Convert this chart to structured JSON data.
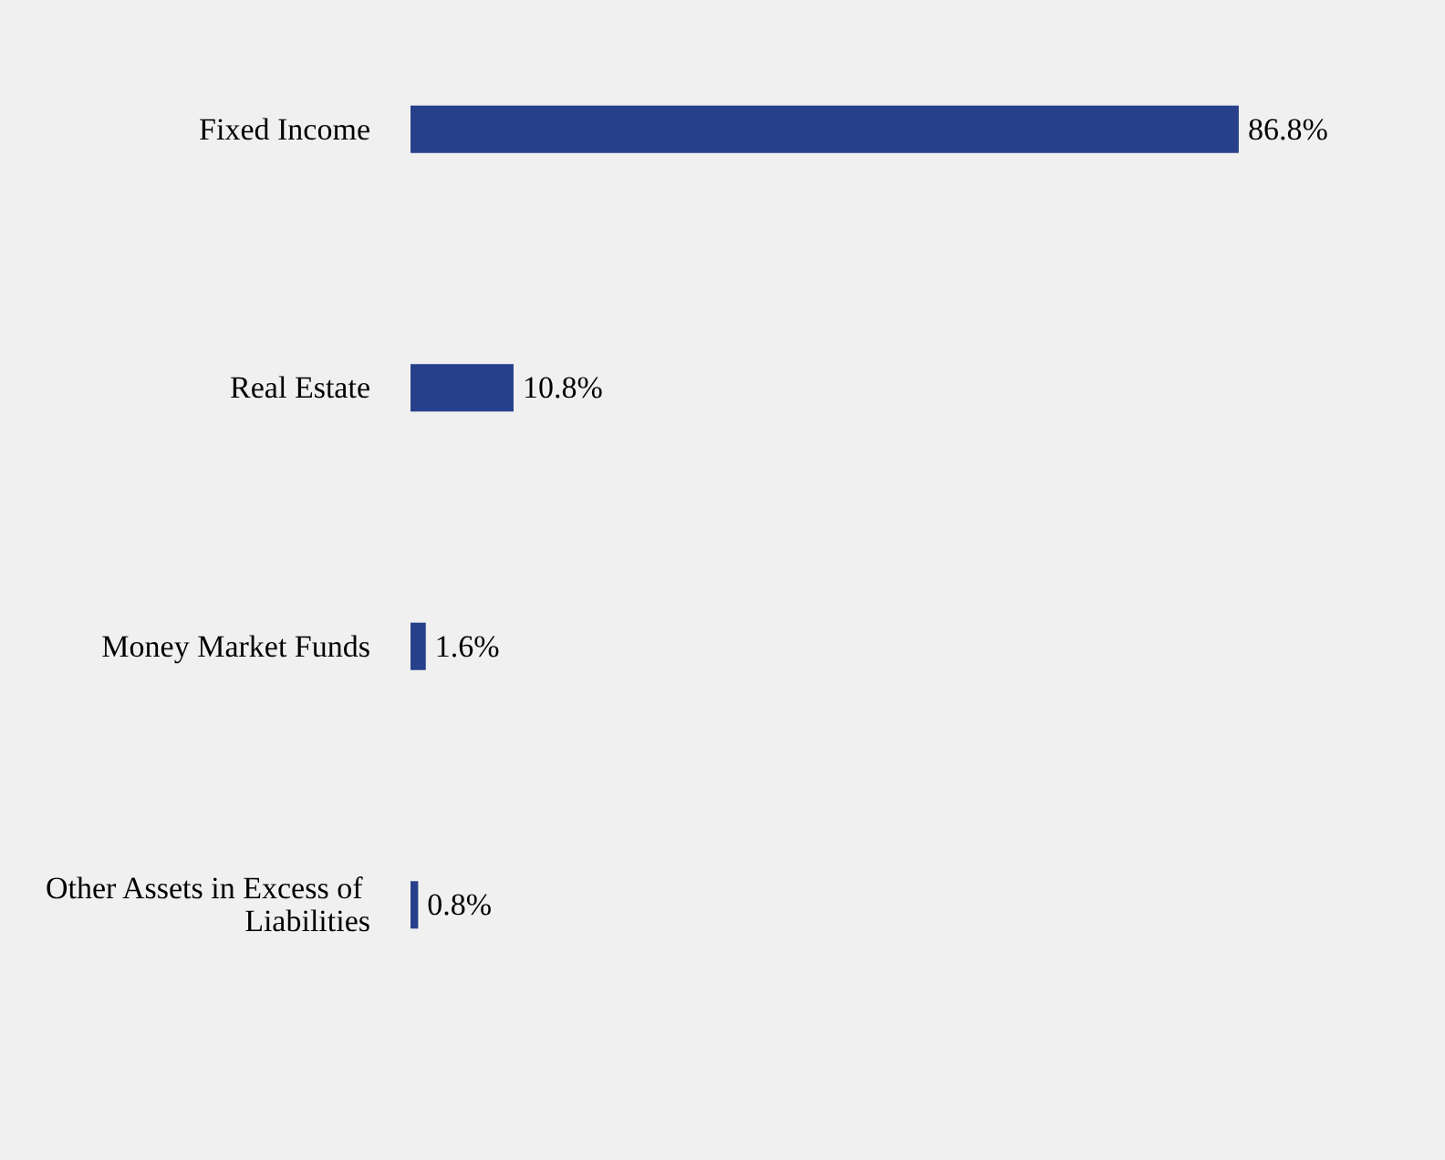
{
  "chart_data": {
    "type": "bar",
    "orientation": "horizontal",
    "categories": [
      "Fixed Income",
      "Real Estate",
      "Money Market Funds",
      "Other Assets in Excess of Liabilities"
    ],
    "values": [
      86.8,
      10.8,
      1.6,
      0.8
    ],
    "value_labels": [
      "86.8%",
      "10.8%",
      "1.6%",
      "0.8%"
    ],
    "color": "#27408b"
  }
}
